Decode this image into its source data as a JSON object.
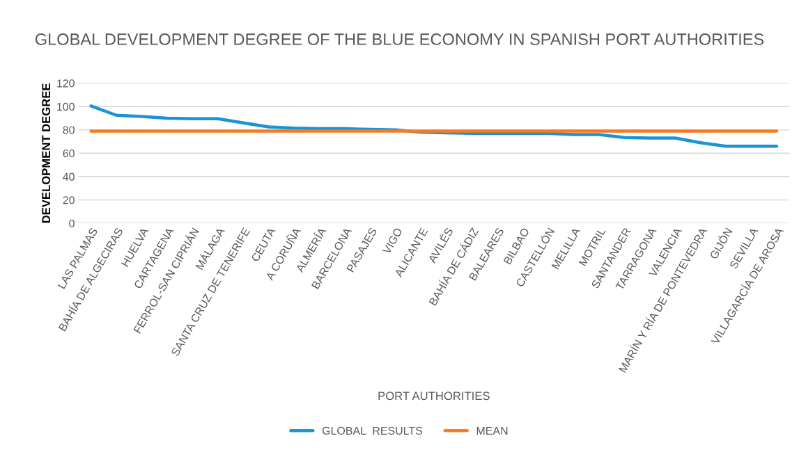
{
  "chart_data": {
    "type": "line",
    "title": "GLOBAL DEVELOPMENT DEGREE OF THE BLUE ECONOMY IN SPANISH PORT AUTHORITIES",
    "xlabel": "PORT AUTHORITIES",
    "ylabel": "DEVELOPMENT DEGREE",
    "categories": [
      "LAS PALMAS",
      "BAHÍA DE ALGECIRAS",
      "HUELVA",
      "CARTAGENA",
      "FERROL-SAN CIPRIÁN",
      "MÁLAGA",
      "SANTA CRUZ DE TENERIFE",
      "CEUTA",
      "A CORUÑA",
      "ALMERÍA",
      "BARCELONA",
      "PASAJES",
      "VIGO",
      "ALICANTE",
      "AVILÉS",
      "BAHÍA DE CÁDIZ",
      "BALEARES",
      "BILBAO",
      "CASTELLÓN",
      "MELILLA",
      "MOTRIL",
      "SANTANDER",
      "TARRAGONA",
      "VALENCIA",
      "MARÍN Y RÍA DE PONTEVEDRA",
      "GIJÓN",
      "SEVILLA",
      "VILLAGARCÍA DE AROSA"
    ],
    "series": [
      {
        "name": "GLOBAL  RESULTS",
        "color": "#1a94d4",
        "values": [
          100.5,
          92.5,
          91.5,
          90,
          89.5,
          89.5,
          86,
          82.5,
          81.5,
          81,
          81,
          80.5,
          80,
          78,
          77.5,
          77,
          77,
          77,
          77,
          76,
          76,
          73.5,
          73,
          73,
          69,
          66,
          66,
          66
        ]
      },
      {
        "name": "MEAN",
        "color": "#fb7a1f",
        "values": [
          79,
          79,
          79,
          79,
          79,
          79,
          79,
          79,
          79,
          79,
          79,
          79,
          79,
          79,
          79,
          79,
          79,
          79,
          79,
          79,
          79,
          79,
          79,
          79,
          79,
          79,
          79,
          79
        ]
      }
    ],
    "ylim": [
      0,
      120
    ],
    "yticks": [
      0,
      20,
      40,
      60,
      80,
      100,
      120
    ],
    "grid": "y",
    "legend": "bottom",
    "marker": "none",
    "line_style": "solid"
  }
}
